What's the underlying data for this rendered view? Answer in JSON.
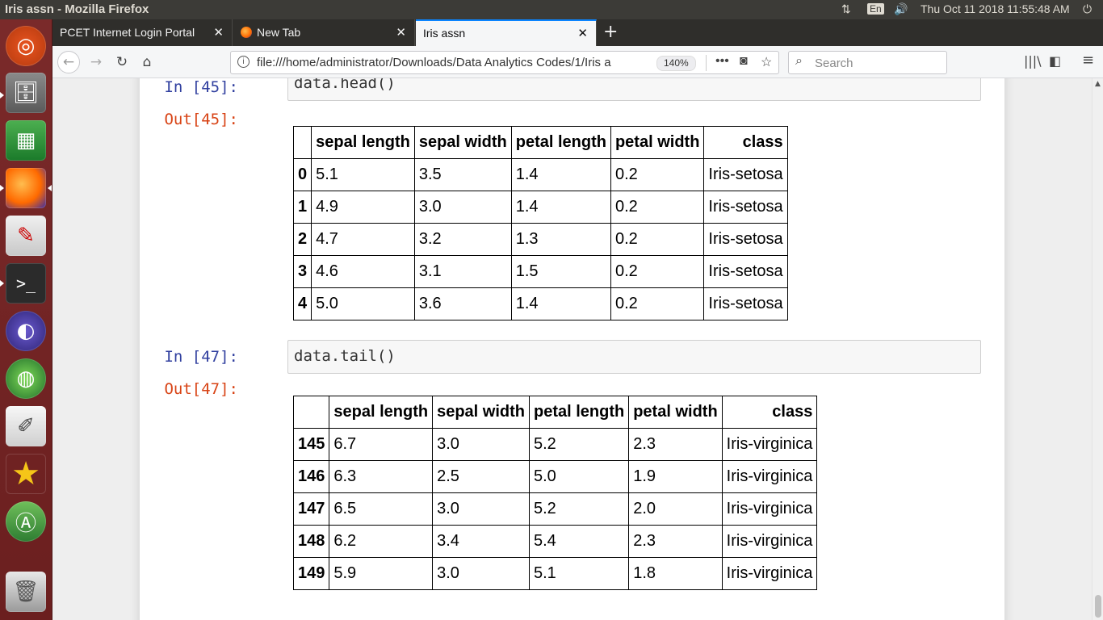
{
  "window": {
    "title": "Iris assn - Mozilla Firefox",
    "keyboard_layout": "En",
    "clock": "Thu Oct 11 2018 11:55:48 AM"
  },
  "launcher": {
    "items": [
      "ubuntu-logo-icon",
      "files-icon",
      "spreadsheet-icon",
      "firefox-icon",
      "document-viewer-icon",
      "terminal-icon",
      "eclipse-icon",
      "globe-app-icon",
      "text-editor-icon",
      "starred-app-icon",
      "software-updater-icon",
      "trash-icon"
    ]
  },
  "tabs": [
    {
      "label": "PCET Internet Login Portal",
      "active": false
    },
    {
      "label": "New Tab",
      "active": false
    },
    {
      "label": "Iris assn",
      "active": true
    }
  ],
  "navbar": {
    "url": "file:///home/administrator/Downloads/Data Analytics Codes/1/Iris a",
    "zoom": "140%",
    "search_placeholder": "Search"
  },
  "cells": [
    {
      "in_prompt": "In [45]:",
      "code": "data.head()",
      "out_prompt": "Out[45]:",
      "columns": [
        "",
        "sepal length",
        "sepal width",
        "petal length",
        "petal width",
        "class"
      ],
      "rows": [
        [
          "0",
          "5.1",
          "3.5",
          "1.4",
          "0.2",
          "Iris-setosa"
        ],
        [
          "1",
          "4.9",
          "3.0",
          "1.4",
          "0.2",
          "Iris-setosa"
        ],
        [
          "2",
          "4.7",
          "3.2",
          "1.3",
          "0.2",
          "Iris-setosa"
        ],
        [
          "3",
          "4.6",
          "3.1",
          "1.5",
          "0.2",
          "Iris-setosa"
        ],
        [
          "4",
          "5.0",
          "3.6",
          "1.4",
          "0.2",
          "Iris-setosa"
        ]
      ]
    },
    {
      "in_prompt": "In [47]:",
      "code": "data.tail()",
      "out_prompt": "Out[47]:",
      "columns": [
        "",
        "sepal length",
        "sepal width",
        "petal length",
        "petal width",
        "class"
      ],
      "rows": [
        [
          "145",
          "6.7",
          "3.0",
          "5.2",
          "2.3",
          "Iris-virginica"
        ],
        [
          "146",
          "6.3",
          "2.5",
          "5.0",
          "1.9",
          "Iris-virginica"
        ],
        [
          "147",
          "6.5",
          "3.0",
          "5.2",
          "2.0",
          "Iris-virginica"
        ],
        [
          "148",
          "6.2",
          "3.4",
          "5.4",
          "2.3",
          "Iris-virginica"
        ],
        [
          "149",
          "5.9",
          "3.0",
          "5.1",
          "1.8",
          "Iris-virginica"
        ]
      ]
    }
  ]
}
